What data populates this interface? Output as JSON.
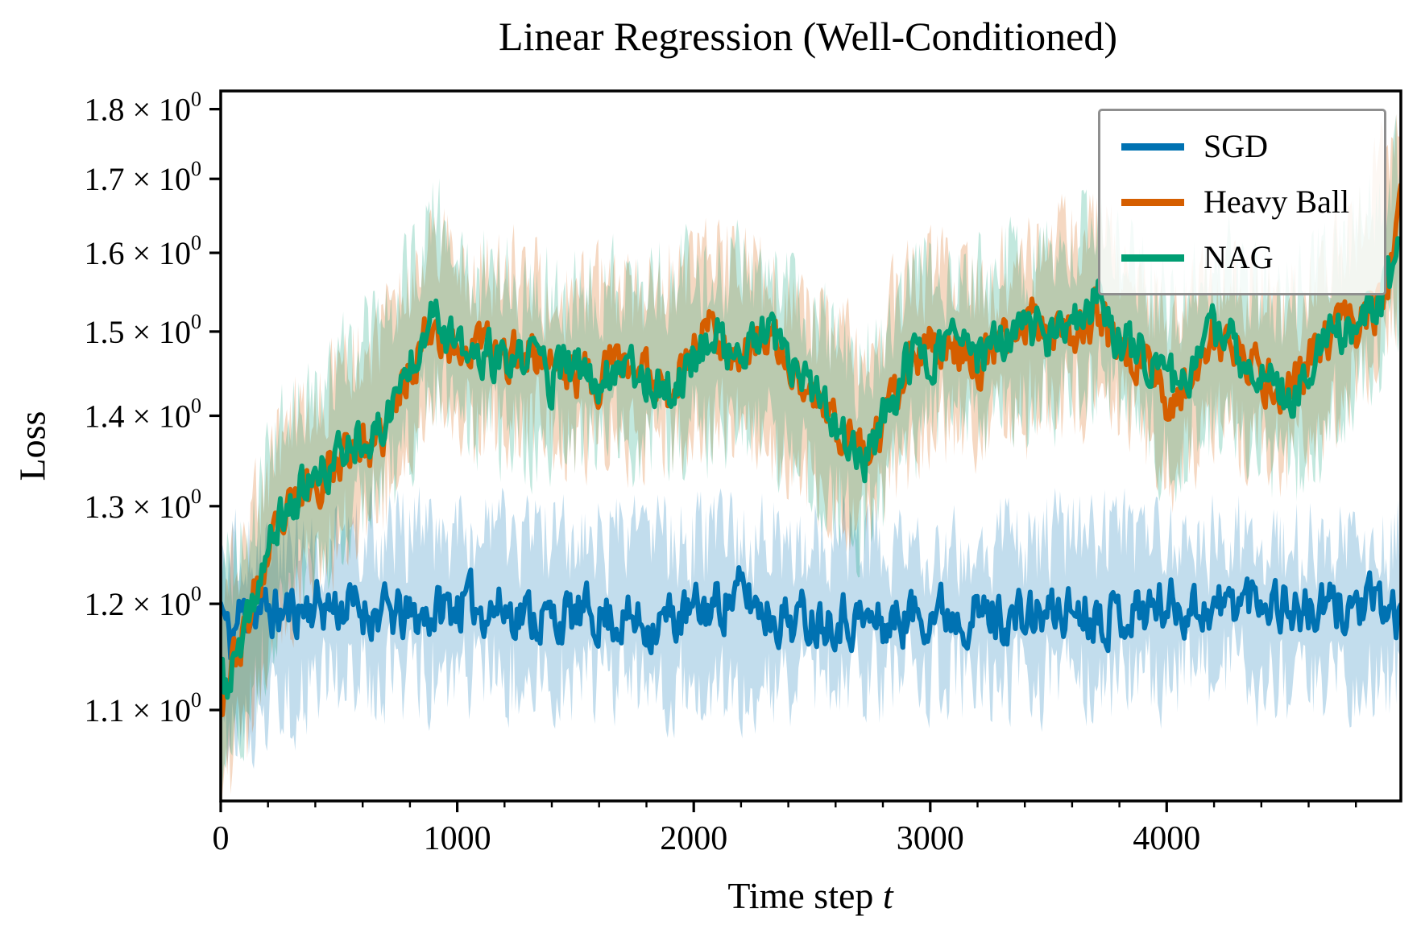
{
  "labels": {
    "xlabel_text": "Time step ",
    "xlabel_var": "t"
  },
  "chart_data": {
    "type": "line",
    "title": "Linear Regression (Well-Conditioned)",
    "xlabel": "Time step t",
    "ylabel": "Loss",
    "x_axis": {
      "range": [
        0,
        4990
      ],
      "ticks": [
        0,
        1000,
        2000,
        3000,
        4000
      ],
      "minor_tick_interval": 200
    },
    "y_axis": {
      "scale": "log",
      "range": [
        1.021,
        1.827
      ],
      "ticks": [
        1.1,
        1.2,
        1.3,
        1.4,
        1.5,
        1.6,
        1.7,
        1.8
      ],
      "exponent": "0",
      "times_symbol": "×"
    },
    "legend": {
      "position": "upper right",
      "entries": [
        "SGD",
        "Heavy Ball",
        "NAG"
      ]
    },
    "series": [
      {
        "name": "SGD",
        "color": "#0072B2",
        "mean": {
          "t": [
            0,
            40,
            80,
            150,
            250,
            400,
            600,
            800,
            1000,
            1200,
            1400,
            1600,
            1800,
            2000,
            2200,
            2300,
            2400,
            2600,
            2800,
            3000,
            3200,
            3400,
            3600,
            3800,
            4000,
            4200,
            4400,
            4600,
            4800,
            4990
          ],
          "v": [
            1.2,
            1.16,
            1.19,
            1.195,
            1.19,
            1.2,
            1.195,
            1.185,
            1.2,
            1.195,
            1.185,
            1.19,
            1.18,
            1.19,
            1.21,
            1.195,
            1.185,
            1.19,
            1.18,
            1.195,
            1.19,
            1.185,
            1.195,
            1.19,
            1.2,
            1.195,
            1.21,
            1.19,
            1.2,
            1.19
          ]
        },
        "band": {
          "t": [
            0,
            100,
            500,
            1000,
            1500,
            2000,
            2500,
            3000,
            3500,
            4000,
            4500,
            4990
          ],
          "lower": [
            1.09,
            1.085,
            1.13,
            1.132,
            1.128,
            1.126,
            1.13,
            1.134,
            1.128,
            1.133,
            1.13,
            1.132
          ],
          "upper": [
            1.24,
            1.25,
            1.262,
            1.27,
            1.263,
            1.26,
            1.268,
            1.258,
            1.263,
            1.268,
            1.258,
            1.263
          ]
        }
      },
      {
        "name": "Heavy Ball",
        "color": "#D55E00",
        "mean": {
          "t": [
            0,
            30,
            60,
            100,
            150,
            200,
            250,
            300,
            350,
            400,
            450,
            500,
            550,
            600,
            650,
            700,
            750,
            800,
            850,
            900,
            950,
            1000,
            1050,
            1100,
            1150,
            1200,
            1250,
            1300,
            1350,
            1400,
            1450,
            1500,
            1600,
            1700,
            1800,
            1900,
            1950,
            2000,
            2050,
            2100,
            2150,
            2200,
            2250,
            2300,
            2350,
            2400,
            2500,
            2600,
            2700,
            2750,
            2800,
            2900,
            3000,
            3100,
            3200,
            3300,
            3400,
            3450,
            3500,
            3550,
            3600,
            3650,
            3700,
            3750,
            3800,
            3900,
            4000,
            4050,
            4100,
            4150,
            4200,
            4300,
            4400,
            4500,
            4600,
            4700,
            4800,
            4900,
            4950,
            4990
          ],
          "v": [
            1.115,
            1.13,
            1.15,
            1.17,
            1.21,
            1.245,
            1.275,
            1.295,
            1.315,
            1.325,
            1.34,
            1.35,
            1.365,
            1.37,
            1.355,
            1.385,
            1.42,
            1.455,
            1.49,
            1.515,
            1.49,
            1.47,
            1.485,
            1.49,
            1.47,
            1.465,
            1.475,
            1.48,
            1.47,
            1.465,
            1.45,
            1.45,
            1.445,
            1.465,
            1.45,
            1.435,
            1.455,
            1.48,
            1.51,
            1.5,
            1.48,
            1.47,
            1.485,
            1.495,
            1.475,
            1.455,
            1.42,
            1.39,
            1.365,
            1.36,
            1.385,
            1.45,
            1.48,
            1.485,
            1.465,
            1.48,
            1.51,
            1.53,
            1.5,
            1.52,
            1.5,
            1.51,
            1.52,
            1.5,
            1.48,
            1.47,
            1.42,
            1.41,
            1.45,
            1.48,
            1.49,
            1.47,
            1.445,
            1.43,
            1.46,
            1.5,
            1.515,
            1.53,
            1.57,
            1.65
          ]
        },
        "band": {
          "t": [
            0,
            100,
            250,
            500,
            750,
            900,
            1000,
            1250,
            1500,
            1750,
            2000,
            2250,
            2500,
            2700,
            2900,
            3000,
            3250,
            3500,
            3700,
            3900,
            4000,
            4250,
            4500,
            4750,
            4990
          ],
          "lower": [
            1.04,
            1.08,
            1.19,
            1.27,
            1.33,
            1.42,
            1.39,
            1.39,
            1.37,
            1.37,
            1.39,
            1.39,
            1.33,
            1.28,
            1.35,
            1.4,
            1.39,
            1.42,
            1.43,
            1.39,
            1.34,
            1.4,
            1.35,
            1.42,
            1.55
          ],
          "upper": [
            1.2,
            1.27,
            1.37,
            1.45,
            1.52,
            1.63,
            1.57,
            1.57,
            1.54,
            1.55,
            1.58,
            1.57,
            1.51,
            1.46,
            1.55,
            1.57,
            1.56,
            1.6,
            1.63,
            1.56,
            1.51,
            1.58,
            1.52,
            1.6,
            1.76
          ]
        }
      },
      {
        "name": "NAG",
        "color": "#009E73",
        "mean": {
          "t": [
            0,
            30,
            60,
            100,
            150,
            200,
            250,
            300,
            350,
            400,
            450,
            500,
            550,
            600,
            650,
            700,
            750,
            800,
            850,
            900,
            950,
            1000,
            1050,
            1100,
            1150,
            1200,
            1250,
            1300,
            1350,
            1400,
            1450,
            1500,
            1600,
            1700,
            1800,
            1900,
            1950,
            2000,
            2050,
            2100,
            2150,
            2200,
            2250,
            2300,
            2350,
            2400,
            2500,
            2600,
            2700,
            2750,
            2800,
            2900,
            3000,
            3100,
            3200,
            3300,
            3400,
            3450,
            3500,
            3550,
            3600,
            3650,
            3700,
            3750,
            3800,
            3900,
            4000,
            4050,
            4100,
            4150,
            4200,
            4300,
            4400,
            4500,
            4600,
            4700,
            4800,
            4900,
            4950,
            4990
          ],
          "v": [
            1.13,
            1.12,
            1.145,
            1.16,
            1.215,
            1.25,
            1.285,
            1.3,
            1.32,
            1.325,
            1.34,
            1.355,
            1.37,
            1.385,
            1.37,
            1.4,
            1.43,
            1.46,
            1.5,
            1.545,
            1.5,
            1.475,
            1.47,
            1.465,
            1.47,
            1.455,
            1.46,
            1.47,
            1.475,
            1.44,
            1.455,
            1.455,
            1.44,
            1.47,
            1.445,
            1.425,
            1.445,
            1.47,
            1.49,
            1.495,
            1.475,
            1.465,
            1.48,
            1.5,
            1.48,
            1.46,
            1.425,
            1.39,
            1.35,
            1.36,
            1.39,
            1.46,
            1.475,
            1.49,
            1.47,
            1.485,
            1.5,
            1.505,
            1.495,
            1.5,
            1.51,
            1.5,
            1.55,
            1.52,
            1.49,
            1.475,
            1.445,
            1.43,
            1.46,
            1.475,
            1.5,
            1.475,
            1.45,
            1.42,
            1.455,
            1.49,
            1.51,
            1.54,
            1.565,
            1.62
          ]
        },
        "band": {
          "t": [
            0,
            100,
            250,
            500,
            750,
            900,
            1000,
            1250,
            1500,
            1750,
            2000,
            2250,
            2500,
            2700,
            2900,
            3000,
            3250,
            3500,
            3700,
            3900,
            4000,
            4250,
            4500,
            4750,
            4990
          ],
          "lower": [
            1.05,
            1.09,
            1.2,
            1.28,
            1.34,
            1.43,
            1.4,
            1.38,
            1.37,
            1.38,
            1.38,
            1.4,
            1.33,
            1.27,
            1.36,
            1.4,
            1.4,
            1.42,
            1.45,
            1.4,
            1.35,
            1.41,
            1.34,
            1.41,
            1.52
          ],
          "upper": [
            1.21,
            1.26,
            1.38,
            1.46,
            1.53,
            1.66,
            1.58,
            1.56,
            1.55,
            1.56,
            1.57,
            1.58,
            1.52,
            1.45,
            1.56,
            1.57,
            1.58,
            1.6,
            1.65,
            1.57,
            1.53,
            1.59,
            1.53,
            1.6,
            1.72
          ]
        }
      }
    ],
    "style": {
      "band_fill_opacity": 0.24,
      "line_width": 6,
      "noise_step": 7,
      "line_noise": [
        0.0068,
        0.006,
        0.006
      ],
      "band_noise": 0.01,
      "seeds": [
        11,
        23,
        37
      ]
    }
  }
}
